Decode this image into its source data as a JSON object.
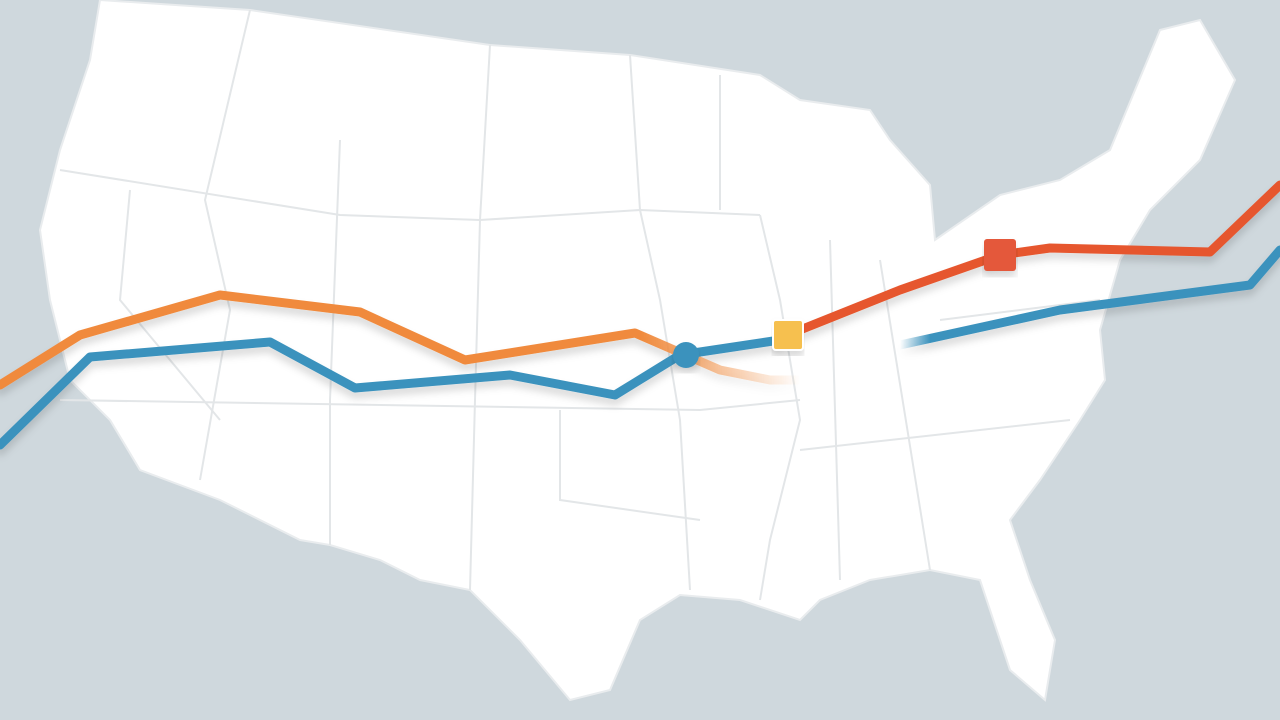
{
  "colors": {
    "background": "#cfd8dd",
    "land": "#ffffff",
    "borders": "#e3e6e8",
    "route_orange": "#f08a3c",
    "route_blue": "#3b92bd",
    "route_red": "#e6572e",
    "marker_yellow": "#f6c04f",
    "marker_red": "#e4583a",
    "marker_blue": "#3b92bd"
  },
  "map": {
    "region": "contiguous-united-states",
    "routes": [
      {
        "id": "orange-route",
        "color_key": "route_orange"
      },
      {
        "id": "blue-route",
        "color_key": "route_blue"
      },
      {
        "id": "red-route",
        "color_key": "route_red"
      },
      {
        "id": "blue-east-route",
        "color_key": "route_blue"
      }
    ],
    "markers": [
      {
        "id": "yellow-square-marker",
        "shape": "square"
      },
      {
        "id": "red-square-marker",
        "shape": "square"
      },
      {
        "id": "blue-circle-marker",
        "shape": "circle"
      }
    ]
  }
}
